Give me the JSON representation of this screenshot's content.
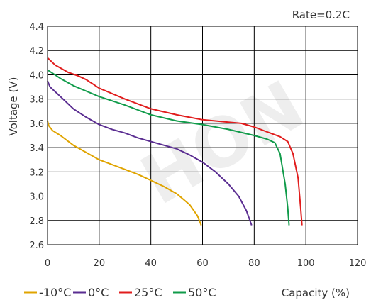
{
  "chart_data": {
    "type": "line",
    "title": "",
    "annotation": "Rate=0.2C",
    "xlabel": "Capacity (%)",
    "ylabel": "Voltage (V)",
    "xlim": [
      0,
      120
    ],
    "ylim": [
      2.6,
      4.4
    ],
    "xticks": [
      "0",
      "20",
      "40",
      "60",
      "80",
      "100",
      "120"
    ],
    "yticks": [
      "2.6",
      "2.8",
      "3.0",
      "3.2",
      "3.4",
      "3.6",
      "3.8",
      "4.0",
      "4.2",
      "4.4"
    ],
    "grid": true,
    "legend_position": "bottom",
    "watermark": "HON",
    "series": [
      {
        "name": "-10°C",
        "color": "#e0a400",
        "points": [
          [
            0,
            3.62
          ],
          [
            0.5,
            3.58
          ],
          [
            2,
            3.54
          ],
          [
            5,
            3.5
          ],
          [
            10,
            3.42
          ],
          [
            15,
            3.36
          ],
          [
            20,
            3.3
          ],
          [
            25,
            3.26
          ],
          [
            30,
            3.22
          ],
          [
            35,
            3.18
          ],
          [
            40,
            3.13
          ],
          [
            45,
            3.08
          ],
          [
            50,
            3.02
          ],
          [
            55,
            2.93
          ],
          [
            58,
            2.84
          ],
          [
            59.5,
            2.76
          ]
        ]
      },
      {
        "name": "0°C",
        "color": "#5a2d91",
        "points": [
          [
            0,
            3.95
          ],
          [
            1,
            3.9
          ],
          [
            5,
            3.82
          ],
          [
            10,
            3.72
          ],
          [
            15,
            3.65
          ],
          [
            20,
            3.59
          ],
          [
            25,
            3.55
          ],
          [
            30,
            3.52
          ],
          [
            35,
            3.48
          ],
          [
            40,
            3.45
          ],
          [
            45,
            3.42
          ],
          [
            50,
            3.39
          ],
          [
            55,
            3.34
          ],
          [
            60,
            3.28
          ],
          [
            65,
            3.2
          ],
          [
            70,
            3.1
          ],
          [
            74,
            3.0
          ],
          [
            77,
            2.88
          ],
          [
            79,
            2.76
          ]
        ]
      },
      {
        "name": "25°C",
        "color": "#e11d1d",
        "points": [
          [
            0,
            4.14
          ],
          [
            3,
            4.08
          ],
          [
            8,
            4.02
          ],
          [
            12,
            3.99
          ],
          [
            15,
            3.96
          ],
          [
            20,
            3.89
          ],
          [
            30,
            3.8
          ],
          [
            40,
            3.72
          ],
          [
            50,
            3.67
          ],
          [
            60,
            3.63
          ],
          [
            70,
            3.61
          ],
          [
            75,
            3.6
          ],
          [
            80,
            3.57
          ],
          [
            85,
            3.53
          ],
          [
            90,
            3.49
          ],
          [
            93,
            3.45
          ],
          [
            95,
            3.35
          ],
          [
            97,
            3.15
          ],
          [
            98,
            2.9
          ],
          [
            98.5,
            2.76
          ]
        ]
      },
      {
        "name": "50°C",
        "color": "#109b4a",
        "points": [
          [
            0,
            4.04
          ],
          [
            5,
            3.97
          ],
          [
            10,
            3.91
          ],
          [
            20,
            3.82
          ],
          [
            30,
            3.75
          ],
          [
            40,
            3.67
          ],
          [
            50,
            3.62
          ],
          [
            60,
            3.59
          ],
          [
            70,
            3.55
          ],
          [
            80,
            3.5
          ],
          [
            85,
            3.47
          ],
          [
            88,
            3.44
          ],
          [
            90,
            3.35
          ],
          [
            92,
            3.1
          ],
          [
            93,
            2.9
          ],
          [
            93.5,
            2.76
          ]
        ]
      }
    ]
  }
}
